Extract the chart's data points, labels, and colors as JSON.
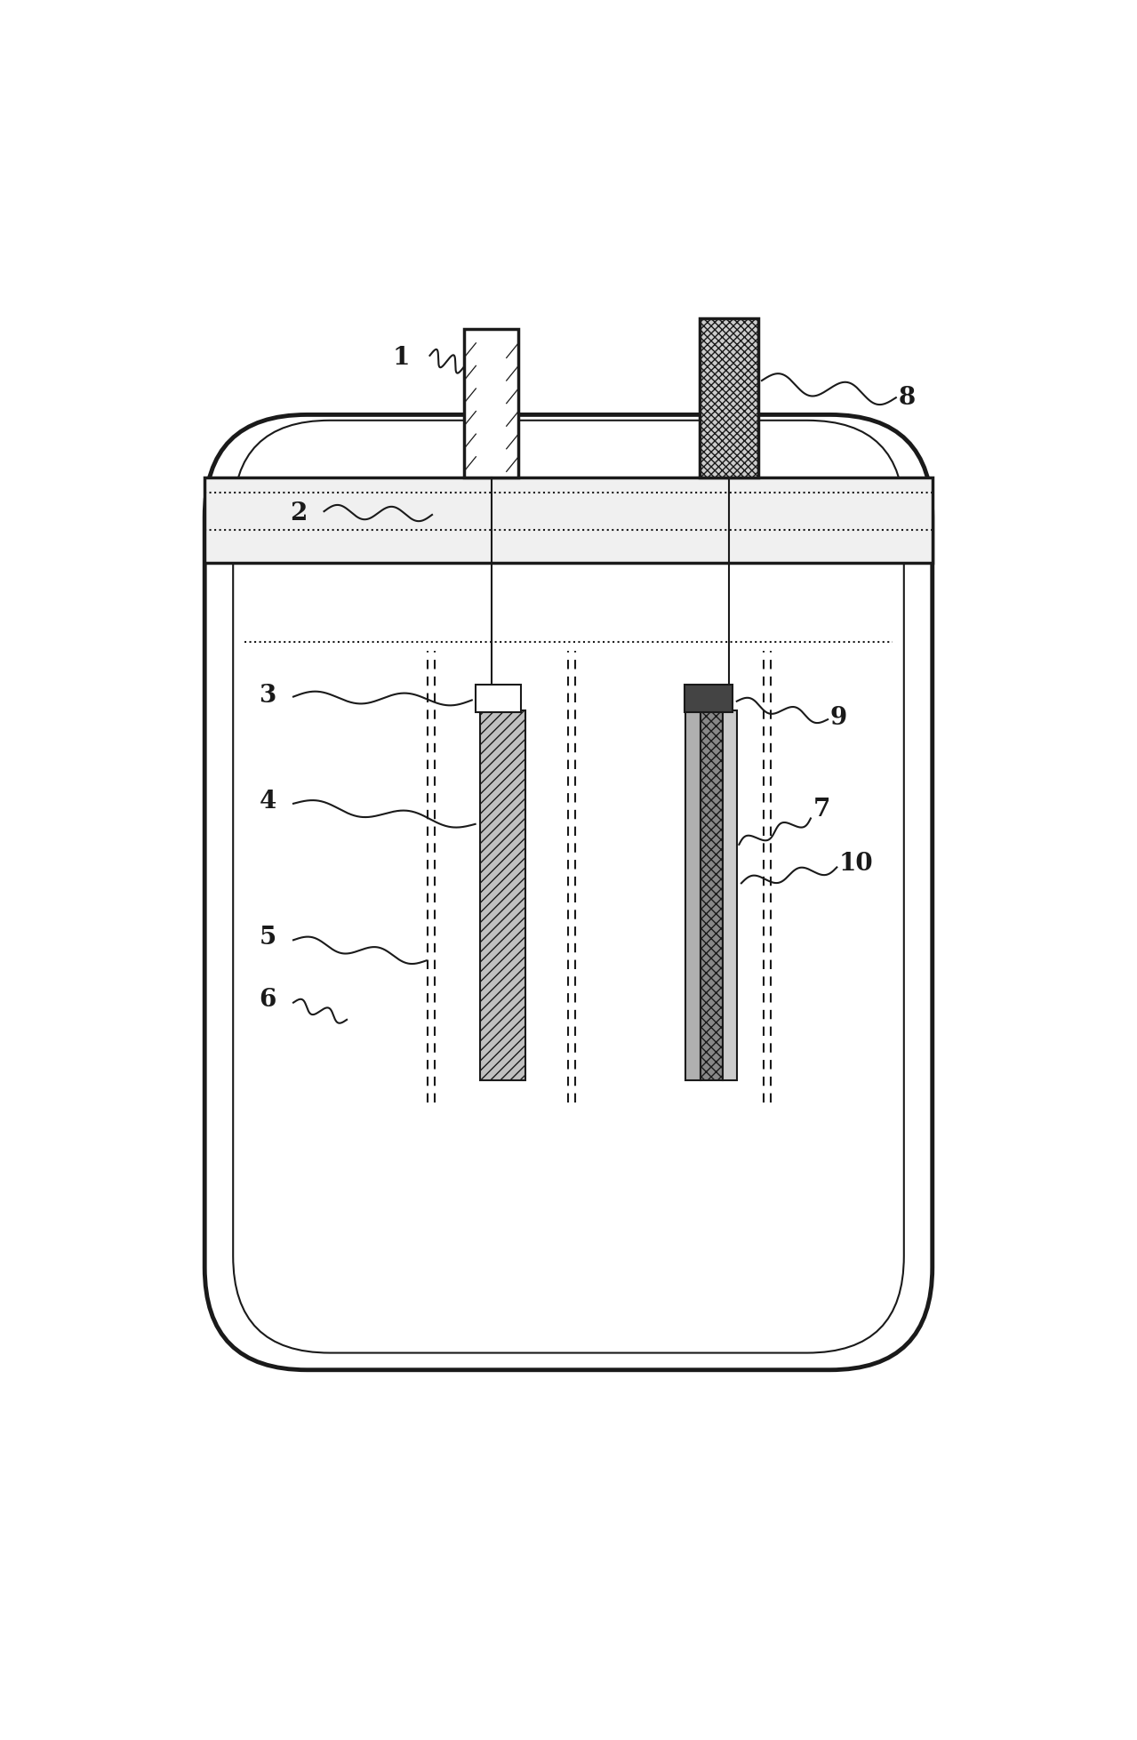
{
  "bg_color": "#ffffff",
  "line_color": "#1a1a1a",
  "lw_main": 2.5,
  "lw_thin": 1.5,
  "lw_thick": 3.5,
  "fig_width": 12.79,
  "fig_height": 19.58
}
